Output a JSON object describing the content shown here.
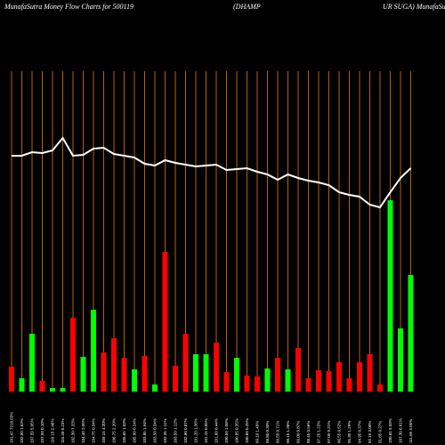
{
  "chart_data": {
    "type": "bar",
    "title_parts": [
      "MunafaSutra  Money Flow  Charts for 500119",
      "(DHAMP",
      "UR SUGA) MunafaSutra.com"
    ],
    "categories": [
      "101.47 7216.63%",
      "102.30 1.63%",
      "107.39 5.05%",
      "107.50 0.10%",
      "110.15 2.46%",
      "110.40 0.23%",
      "102.30 7.33%",
      "104.40 2.05%",
      "104.75 0.34%",
      "109.15 4.20%",
      "106.75 2.20%",
      "105.65 1.03%",
      "105.90 0.24%",
      "103.85 1.94%",
      "103.50 0.34%",
      "102.35 1.11%",
      "103.50 1.12%",
      "102.60 0.87%",
      "101.20 1.36%",
      "101.15 0.05%",
      "101.60 0.44%",
      "100.50 1.08%",
      "100.85 0.35%",
      "100.60 0.25%",
      "99.10 1.49%",
      "98.80 0.30%",
      "99.50 0.71%",
      "98.15 1.36%",
      "99.00 0.87%",
      "98.45 0.56%",
      "97.25 1.22%",
      "97.05 0.21%",
      "96.55 0.52%",
      "95.30 1.29%",
      "94.95 0.37%",
      "92.10 3.00%",
      "91.85 0.27%",
      "100.65 9.58%",
      "107.30 6.61%",
      "111.65 4.05%"
    ],
    "bars": {
      "values": [
        28,
        15,
        65,
        12,
        4,
        4,
        83,
        39,
        92,
        44,
        60,
        38,
        25,
        40,
        8,
        157,
        29,
        65,
        42,
        42,
        55,
        22,
        38,
        18,
        17,
        26,
        38,
        25,
        49,
        15,
        24,
        23,
        33,
        15,
        33,
        42,
        8,
        215,
        71,
        131
      ],
      "colors": [
        "#ff0000",
        "#00ff00",
        "#00ff00",
        "#ff0000",
        "#00ff00",
        "#00ff00",
        "#ff0000",
        "#00ff00",
        "#00ff00",
        "#ff0000",
        "#ff0000",
        "#ff0000",
        "#00ff00",
        "#ff0000",
        "#00ff00",
        "#ff0000",
        "#ff0000",
        "#ff0000",
        "#00ff00",
        "#00ff00",
        "#ff0000",
        "#ff0000",
        "#00ff00",
        "#ff0000",
        "#ff0000",
        "#00ff00",
        "#ff0000",
        "#00ff00",
        "#ff0000",
        "#ff0000",
        "#ff0000",
        "#ff0000",
        "#ff0000",
        "#ff0000",
        "#ff0000",
        "#ff0000",
        "#ff0000",
        "#00ff00",
        "#00ff00",
        "#00ff00"
      ]
    },
    "line": {
      "color": "#ffffff",
      "values": [
        265,
        265,
        269,
        268,
        271,
        285,
        265,
        266,
        273,
        274,
        267,
        265,
        263,
        256,
        254,
        260,
        257,
        255,
        253,
        254,
        255,
        249,
        250,
        251,
        247,
        244,
        238,
        244,
        240,
        237,
        235,
        232,
        224,
        221,
        219,
        210,
        207,
        224,
        240,
        251
      ]
    },
    "ylim": [
      0,
      360
    ],
    "grid_color": "#b8610f"
  }
}
